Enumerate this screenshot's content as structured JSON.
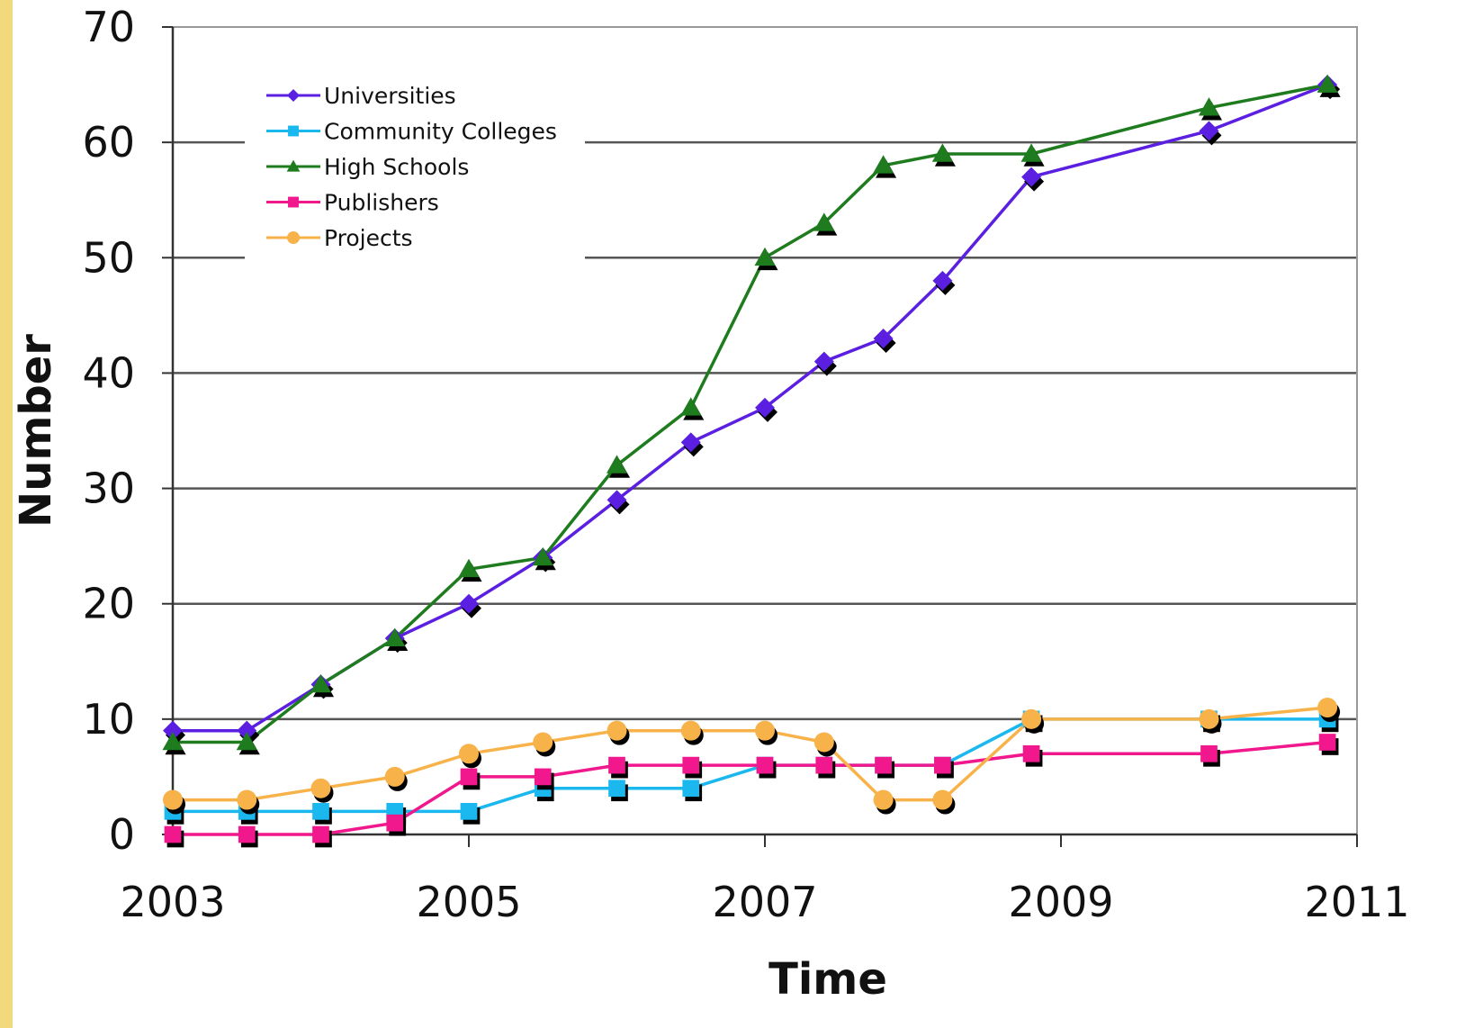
{
  "chart_data": {
    "type": "line",
    "title": "",
    "xlabel": "Time",
    "ylabel": "Number",
    "xlim": [
      2003,
      2011
    ],
    "ylim": [
      0,
      70
    ],
    "x_ticks": [
      "2003",
      "2005",
      "2007",
      "2009",
      "2011"
    ],
    "y_ticks": [
      "0",
      "10",
      "20",
      "30",
      "40",
      "50",
      "60",
      "70"
    ],
    "grid": "horizontal",
    "legend_position": "top-left",
    "series": [
      {
        "name": "Universities",
        "color": "#5a1fe0",
        "marker": "diamond",
        "x": [
          2003.0,
          2003.5,
          2004.0,
          2004.5,
          2005.0,
          2005.5,
          2006.0,
          2006.5,
          2007.0,
          2007.4,
          2007.8,
          2008.2,
          2008.8,
          2010.0,
          2010.8
        ],
        "y": [
          9,
          9,
          13,
          17,
          20,
          24,
          29,
          34,
          37,
          41,
          43,
          48,
          57,
          61,
          65
        ]
      },
      {
        "name": "Community Colleges",
        "color": "#1ab8ee",
        "marker": "square",
        "x": [
          2003.0,
          2003.5,
          2004.0,
          2004.5,
          2005.0,
          2005.5,
          2006.0,
          2006.5,
          2007.0,
          2007.4,
          2007.8,
          2008.2,
          2008.8,
          2010.0,
          2010.8
        ],
        "y": [
          2,
          2,
          2,
          2,
          2,
          4,
          4,
          4,
          6,
          6,
          6,
          6,
          10,
          10,
          10
        ]
      },
      {
        "name": "High Schools",
        "color": "#1e7b1e",
        "marker": "triangle",
        "x": [
          2003.0,
          2003.5,
          2004.0,
          2004.5,
          2005.0,
          2005.5,
          2006.0,
          2006.5,
          2007.0,
          2007.4,
          2007.8,
          2008.2,
          2008.8,
          2010.0,
          2010.8
        ],
        "y": [
          8,
          8,
          13,
          17,
          23,
          24,
          32,
          37,
          50,
          53,
          58,
          59,
          59,
          63,
          65
        ]
      },
      {
        "name": "Publishers",
        "color": "#f0188c",
        "marker": "square",
        "x": [
          2003.0,
          2003.5,
          2004.0,
          2004.5,
          2005.0,
          2005.5,
          2006.0,
          2006.5,
          2007.0,
          2007.4,
          2007.8,
          2008.2,
          2008.8,
          2010.0,
          2010.8
        ],
        "y": [
          0,
          0,
          0,
          1,
          5,
          5,
          6,
          6,
          6,
          6,
          6,
          6,
          7,
          7,
          8
        ]
      },
      {
        "name": "Projects",
        "color": "#f8b24a",
        "marker": "circle",
        "x": [
          2003.0,
          2003.5,
          2004.0,
          2004.5,
          2005.0,
          2005.5,
          2006.0,
          2006.5,
          2007.0,
          2007.4,
          2007.8,
          2008.2,
          2008.8,
          2010.0,
          2010.8
        ],
        "y": [
          3,
          3,
          4,
          5,
          7,
          8,
          9,
          9,
          9,
          8,
          3,
          3,
          10,
          10,
          11
        ]
      }
    ]
  }
}
